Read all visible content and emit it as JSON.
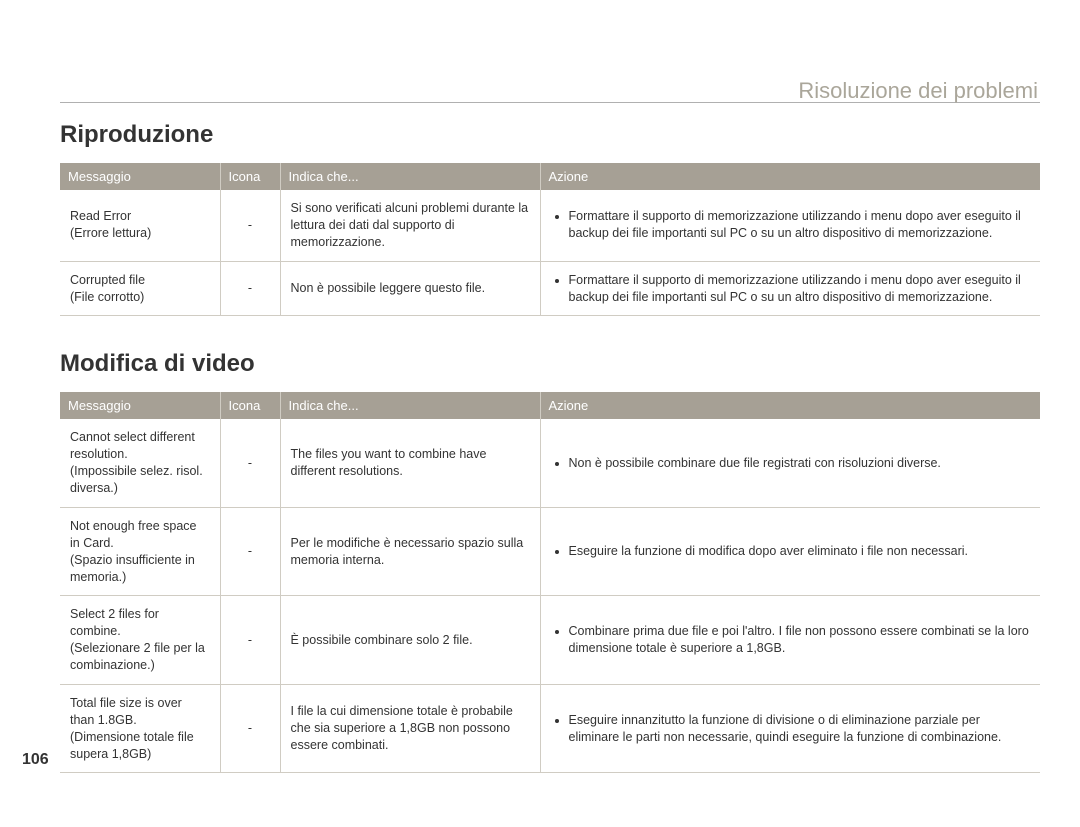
{
  "page": {
    "top_right_title": "Risoluzione dei problemi",
    "page_number": "106"
  },
  "colors": {
    "header_bg": "#a6a095",
    "header_text": "#ffffff",
    "border": "#d0ccc3",
    "muted_title": "#aaa69a",
    "body_text": "#333333"
  },
  "sections": [
    {
      "title": "Riproduzione",
      "columns": {
        "msg": "Messaggio",
        "icon": "Icona",
        "indica": "Indica che...",
        "azione": "Azione"
      },
      "rows": [
        {
          "msg_main": "Read Error",
          "msg_sub": "(Errore lettura)",
          "icon": "-",
          "indica": "Si sono verificati alcuni problemi durante la lettura dei dati dal supporto di memorizzazione.",
          "azione": [
            "Formattare il supporto di memorizzazione utilizzando i menu dopo aver eseguito il backup dei file importanti sul PC o su un altro dispositivo di memorizzazione."
          ]
        },
        {
          "msg_main": "Corrupted file",
          "msg_sub": "(File corrotto)",
          "icon": "-",
          "indica": "Non è possibile leggere questo file.",
          "azione": [
            "Formattare il supporto di memorizzazione utilizzando i menu dopo aver eseguito il backup dei file importanti sul PC o su un altro dispositivo di memorizzazione."
          ]
        }
      ]
    },
    {
      "title": "Modifica di video",
      "columns": {
        "msg": "Messaggio",
        "icon": "Icona",
        "indica": "Indica che...",
        "azione": "Azione"
      },
      "rows": [
        {
          "msg_main": "Cannot select different resolution.",
          "msg_sub": "(Impossibile selez. risol. diversa.)",
          "icon": "-",
          "indica": "The files you want to combine have different resolutions.",
          "azione": [
            "Non è possibile combinare due file registrati con risoluzioni diverse."
          ]
        },
        {
          "msg_main": "Not enough free space in Card.",
          "msg_sub": "(Spazio insufficiente in memoria.)",
          "icon": "-",
          "indica": "Per le modifiche è necessario spazio sulla memoria interna.",
          "azione": [
            "Eseguire la funzione di modifica dopo aver eliminato i file non necessari."
          ]
        },
        {
          "msg_main": "Select 2 files for combine.",
          "msg_sub": "(Selezionare 2 file per la combinazione.)",
          "icon": "-",
          "indica": "È possibile combinare solo 2 file.",
          "azione": [
            "Combinare prima due file e poi l'altro. I file non possono essere combinati se la loro dimensione totale è superiore a 1,8GB."
          ]
        },
        {
          "msg_main": "Total file size is over than 1.8GB.",
          "msg_sub": "(Dimensione totale file supera 1,8GB)",
          "icon": "-",
          "indica": "I file la cui dimensione totale è probabile che sia superiore a 1,8GB non possono essere combinati.",
          "azione": [
            "Eseguire innanzitutto la funzione di divisione o di eliminazione parziale per eliminare le parti non necessarie, quindi eseguire la funzione di combinazione."
          ]
        }
      ]
    }
  ]
}
